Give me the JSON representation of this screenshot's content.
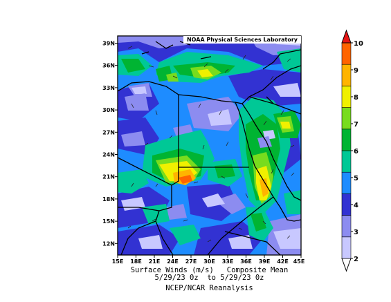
{
  "header": {
    "lab_label": "NOAA Physical Sciences Laboratory"
  },
  "map": {
    "variable": "Surface Winds (m/s)",
    "statistic": "Composite Mean",
    "date_range": "5/29/23 0z  to 5/29/23 0z",
    "source": "NCEP/NCAR Reanalysis",
    "lat_labels": [
      "39N",
      "36N",
      "33N",
      "30N",
      "27N",
      "24N",
      "21N",
      "18N",
      "15N",
      "12N"
    ],
    "lon_labels": [
      "15E",
      "18E",
      "21E",
      "24E",
      "27E",
      "30E",
      "33E",
      "36E",
      "39E",
      "42E",
      "45E"
    ]
  },
  "colorbar": {
    "levels": [
      "2",
      "3",
      "4",
      "5",
      "6",
      "7",
      "8",
      "9",
      "10"
    ],
    "colors": [
      "#ffffff",
      "#c8c8ff",
      "#8c8cf0",
      "#3232d2",
      "#1e8cff",
      "#00c896",
      "#00b432",
      "#78dc1e",
      "#f0f000",
      "#ffb400",
      "#ff6400",
      "#e61414"
    ]
  }
}
